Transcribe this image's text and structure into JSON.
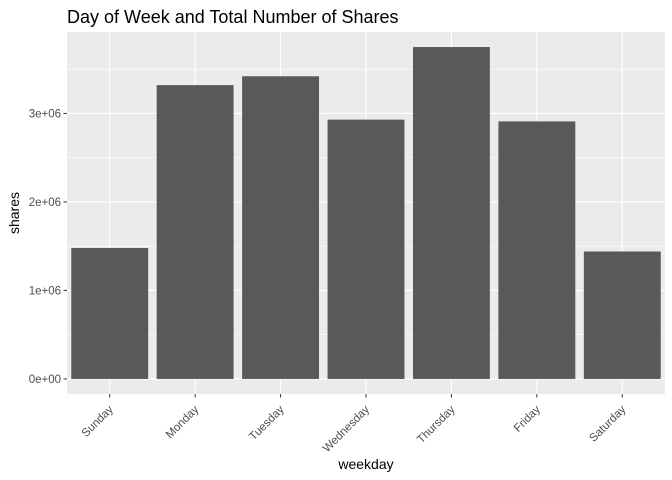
{
  "chart_data": {
    "type": "bar",
    "title": "Day of Week and Total Number of Shares",
    "xlabel": "weekday",
    "ylabel": "shares",
    "categories": [
      "Sunday",
      "Monday",
      "Tuesday",
      "Wednesday",
      "Thursday",
      "Friday",
      "Saturday"
    ],
    "values": [
      1480000,
      3320000,
      3420000,
      2930000,
      3750000,
      2910000,
      1440000
    ],
    "ylim": [
      -170000,
      3920000
    ],
    "yticks": [
      0,
      1000000,
      2000000,
      3000000
    ],
    "ytick_labels": [
      "0e+00",
      "1e+06",
      "2e+06",
      "3e+06"
    ],
    "grid": true,
    "colors": {
      "panel_background": "#ebebeb",
      "gridline": "#ffffff",
      "bar_fill": "#595959",
      "tick_label": "#4d4d4d",
      "tick_mark": "#333333"
    }
  }
}
